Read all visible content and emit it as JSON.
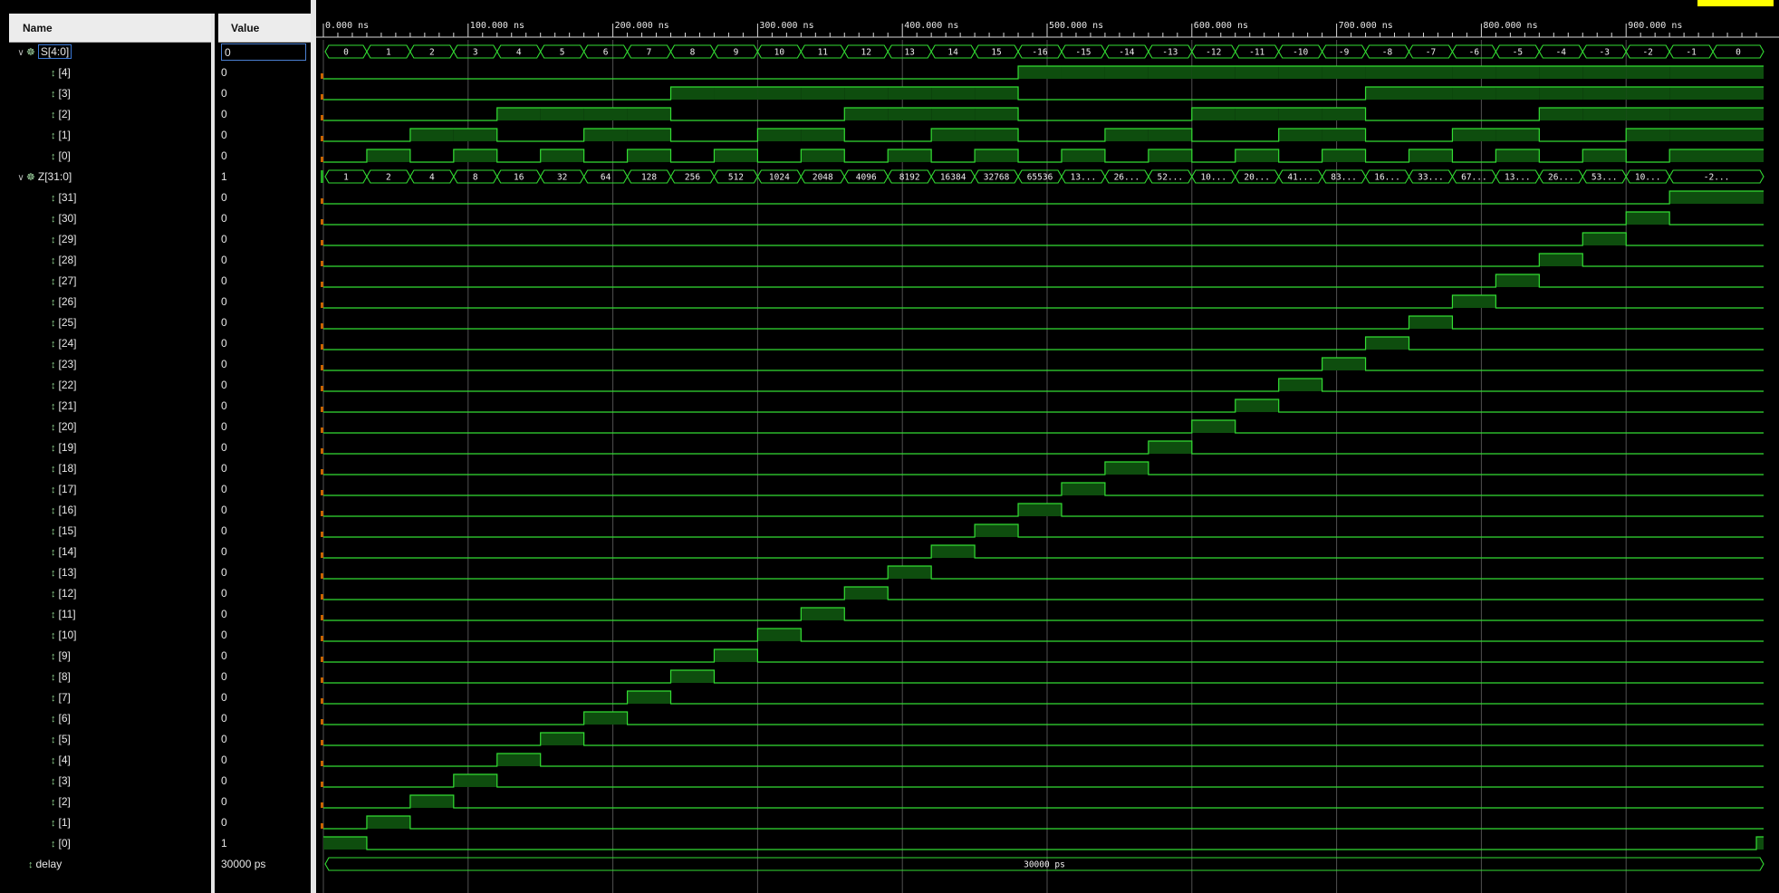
{
  "columns": {
    "name": "Name",
    "value": "Value"
  },
  "timeline": {
    "tick_labels": [
      "0.000 ns",
      "100.000 ns",
      "200.000 ns",
      "300.000 ns",
      "400.000 ns",
      "500.000 ns",
      "600.000 ns",
      "700.000 ns",
      "800.000 ns",
      "900.000 ns"
    ],
    "end_ns": 995
  },
  "signals": [
    {
      "name": "S[4:0]",
      "value": "0",
      "type": "bus",
      "expanded": true,
      "selected": true,
      "labels": [
        "0",
        "1",
        "2",
        "3",
        "4",
        "5",
        "6",
        "7",
        "8",
        "9",
        "10",
        "11",
        "12",
        "13",
        "14",
        "15",
        "-16",
        "-15",
        "-14",
        "-13",
        "-12",
        "-11",
        "-10",
        "-9",
        "-8",
        "-7",
        "-6",
        "-5",
        "-4",
        "-3",
        "-2",
        "-1",
        "0"
      ]
    },
    {
      "name": "[4]",
      "value": "0",
      "type": "bit",
      "bit": 4,
      "source": "S"
    },
    {
      "name": "[3]",
      "value": "0",
      "type": "bit",
      "bit": 3,
      "source": "S"
    },
    {
      "name": "[2]",
      "value": "0",
      "type": "bit",
      "bit": 2,
      "source": "S"
    },
    {
      "name": "[1]",
      "value": "0",
      "type": "bit",
      "bit": 1,
      "source": "S"
    },
    {
      "name": "[0]",
      "value": "0",
      "type": "bit",
      "bit": 0,
      "source": "S"
    },
    {
      "name": "Z[31:0]",
      "value": "1",
      "type": "bus",
      "expanded": true,
      "labels": [
        "1",
        "2",
        "4",
        "8",
        "16",
        "32",
        "64",
        "128",
        "256",
        "512",
        "1024",
        "2048",
        "4096",
        "8192",
        "16384",
        "32768",
        "65536",
        "13...",
        "26...",
        "52...",
        "10...",
        "20...",
        "41...",
        "83...",
        "16...",
        "33...",
        "67...",
        "13...",
        "26...",
        "53...",
        "10...",
        "-2..."
      ]
    },
    {
      "name": "[31]",
      "value": "0",
      "type": "bit",
      "bit": 31,
      "source": "Z"
    },
    {
      "name": "[30]",
      "value": "0",
      "type": "bit",
      "bit": 30,
      "source": "Z"
    },
    {
      "name": "[29]",
      "value": "0",
      "type": "bit",
      "bit": 29,
      "source": "Z"
    },
    {
      "name": "[28]",
      "value": "0",
      "type": "bit",
      "bit": 28,
      "source": "Z"
    },
    {
      "name": "[27]",
      "value": "0",
      "type": "bit",
      "bit": 27,
      "source": "Z"
    },
    {
      "name": "[26]",
      "value": "0",
      "type": "bit",
      "bit": 26,
      "source": "Z"
    },
    {
      "name": "[25]",
      "value": "0",
      "type": "bit",
      "bit": 25,
      "source": "Z"
    },
    {
      "name": "[24]",
      "value": "0",
      "type": "bit",
      "bit": 24,
      "source": "Z"
    },
    {
      "name": "[23]",
      "value": "0",
      "type": "bit",
      "bit": 23,
      "source": "Z"
    },
    {
      "name": "[22]",
      "value": "0",
      "type": "bit",
      "bit": 22,
      "source": "Z"
    },
    {
      "name": "[21]",
      "value": "0",
      "type": "bit",
      "bit": 21,
      "source": "Z"
    },
    {
      "name": "[20]",
      "value": "0",
      "type": "bit",
      "bit": 20,
      "source": "Z"
    },
    {
      "name": "[19]",
      "value": "0",
      "type": "bit",
      "bit": 19,
      "source": "Z"
    },
    {
      "name": "[18]",
      "value": "0",
      "type": "bit",
      "bit": 18,
      "source": "Z"
    },
    {
      "name": "[17]",
      "value": "0",
      "type": "bit",
      "bit": 17,
      "source": "Z"
    },
    {
      "name": "[16]",
      "value": "0",
      "type": "bit",
      "bit": 16,
      "source": "Z"
    },
    {
      "name": "[15]",
      "value": "0",
      "type": "bit",
      "bit": 15,
      "source": "Z"
    },
    {
      "name": "[14]",
      "value": "0",
      "type": "bit",
      "bit": 14,
      "source": "Z"
    },
    {
      "name": "[13]",
      "value": "0",
      "type": "bit",
      "bit": 13,
      "source": "Z"
    },
    {
      "name": "[12]",
      "value": "0",
      "type": "bit",
      "bit": 12,
      "source": "Z"
    },
    {
      "name": "[11]",
      "value": "0",
      "type": "bit",
      "bit": 11,
      "source": "Z"
    },
    {
      "name": "[10]",
      "value": "0",
      "type": "bit",
      "bit": 10,
      "source": "Z"
    },
    {
      "name": "[9]",
      "value": "0",
      "type": "bit",
      "bit": 9,
      "source": "Z"
    },
    {
      "name": "[8]",
      "value": "0",
      "type": "bit",
      "bit": 8,
      "source": "Z"
    },
    {
      "name": "[7]",
      "value": "0",
      "type": "bit",
      "bit": 7,
      "source": "Z"
    },
    {
      "name": "[6]",
      "value": "0",
      "type": "bit",
      "bit": 6,
      "source": "Z"
    },
    {
      "name": "[5]",
      "value": "0",
      "type": "bit",
      "bit": 5,
      "source": "Z"
    },
    {
      "name": "[4]",
      "value": "0",
      "type": "bit",
      "bit": 4,
      "source": "Z"
    },
    {
      "name": "[3]",
      "value": "0",
      "type": "bit",
      "bit": 3,
      "source": "Z"
    },
    {
      "name": "[2]",
      "value": "0",
      "type": "bit",
      "bit": 2,
      "source": "Z"
    },
    {
      "name": "[1]",
      "value": "0",
      "type": "bit",
      "bit": 1,
      "source": "Z"
    },
    {
      "name": "[0]",
      "value": "1",
      "type": "bit",
      "bit": 0,
      "source": "Z"
    },
    {
      "name": "delay",
      "value": "30000 ps",
      "type": "const",
      "labels": [
        "30000 ps"
      ]
    }
  ],
  "colors": {
    "wave": "#33dd33",
    "fill": "#0e4d0e",
    "grid": "#505050",
    "ruler": "#d8d8d8",
    "cursor": "#ffff00"
  }
}
